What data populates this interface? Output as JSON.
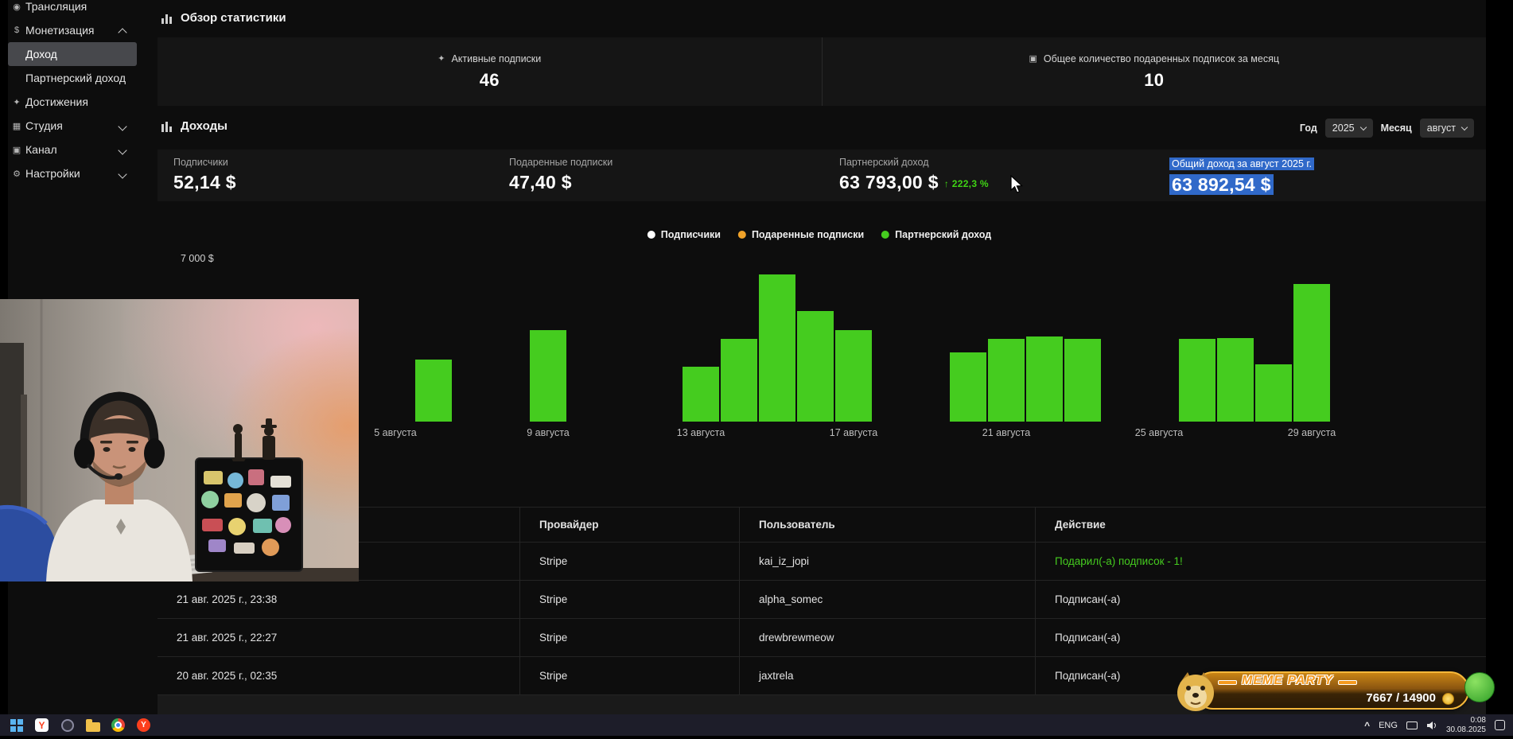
{
  "colors": {
    "bar_green": "#45cc1f",
    "legend_orange": "#f0a229",
    "legend_white": "#ffffff",
    "selection_blue": "#3069c9",
    "delta_green": "#3fd414"
  },
  "sidebar": {
    "items": [
      {
        "key": "broadcast",
        "label": "Трансляция",
        "level": 0,
        "chevron": null,
        "active": false,
        "icon": "broadcast-icon",
        "icon_glyph": "◉"
      },
      {
        "key": "monetization",
        "label": "Монетизация",
        "level": 0,
        "chevron": "up",
        "active": false,
        "icon": "monetization-icon",
        "icon_glyph": "$"
      },
      {
        "key": "income",
        "label": "Доход",
        "level": 1,
        "chevron": null,
        "active": true,
        "icon": null,
        "icon_glyph": null
      },
      {
        "key": "partner-income",
        "label": "Партнерский доход",
        "level": 1,
        "chevron": null,
        "active": false,
        "icon": null,
        "icon_glyph": null
      },
      {
        "key": "achievements",
        "label": "Достижения",
        "level": 0,
        "chevron": null,
        "active": false,
        "icon": "achievements-icon",
        "icon_glyph": "✦"
      },
      {
        "key": "studio",
        "label": "Студия",
        "level": 0,
        "chevron": "down",
        "active": false,
        "icon": "studio-icon",
        "icon_glyph": "▦"
      },
      {
        "key": "channel",
        "label": "Канал",
        "level": 0,
        "chevron": "down",
        "active": false,
        "icon": "channel-icon",
        "icon_glyph": "▣"
      },
      {
        "key": "settings",
        "label": "Настройки",
        "level": 0,
        "chevron": "down",
        "active": false,
        "icon": "settings-icon",
        "icon_glyph": "⚙"
      }
    ]
  },
  "overview": {
    "title": "Обзор статистики",
    "cards": [
      {
        "label": "Активные подписки",
        "value": "46",
        "icon": "subscriptions-icon",
        "icon_glyph": "✦"
      },
      {
        "label": "Общее количество подаренных подписок за месяц",
        "value": "10",
        "icon": "gift-subs-icon",
        "icon_glyph": "▣"
      }
    ]
  },
  "income": {
    "title": "Доходы",
    "year_label": "Год",
    "year_value": "2025",
    "month_label": "Месяц",
    "month_value": "август",
    "stats": [
      {
        "label": "Подписчики",
        "value": "52,14 $",
        "delta": null,
        "highlighted": false
      },
      {
        "label": "Подаренные подписки",
        "value": "47,40 $",
        "delta": null,
        "highlighted": false
      },
      {
        "label": "Партнерский доход",
        "value": "63 793,00 $",
        "delta": "222,3 %",
        "highlighted": false
      },
      {
        "label": "Общий доход за август 2025 г.",
        "value": "63 892,54 $",
        "delta": null,
        "highlighted": true
      }
    ]
  },
  "chart_data": {
    "type": "bar",
    "title": "",
    "unit": "$",
    "legend": [
      {
        "label": "Подписчики",
        "color": "#ffffff"
      },
      {
        "label": "Подаренные подписки",
        "color": "#f0a229"
      },
      {
        "label": "Партнерский доход",
        "color": "#45cc1f"
      }
    ],
    "y_tick": "7 000 $",
    "y_tick_value": 7000,
    "ylim": [
      0,
      7300
    ],
    "series": [
      {
        "name": "Партнерский доход",
        "color": "#45cc1f",
        "points": [
          {
            "day": 6,
            "value": 2700
          },
          {
            "day": 9,
            "value": 4000
          },
          {
            "day": 13,
            "value": 2400
          },
          {
            "day": 14,
            "value": 3600
          },
          {
            "day": 15,
            "value": 6400
          },
          {
            "day": 16,
            "value": 4800
          },
          {
            "day": 17,
            "value": 4000
          },
          {
            "day": 20,
            "value": 3000
          },
          {
            "day": 21,
            "value": 3600
          },
          {
            "day": 22,
            "value": 3700
          },
          {
            "day": 23,
            "value": 3600
          },
          {
            "day": 26,
            "value": 3600
          },
          {
            "day": 27,
            "value": 3650
          },
          {
            "day": 28,
            "value": 2500
          },
          {
            "day": 29,
            "value": 6000
          }
        ]
      }
    ],
    "x_ticks": [
      {
        "day": 5,
        "label": "5 августа"
      },
      {
        "day": 9,
        "label": "9 августа"
      },
      {
        "day": 13,
        "label": "13 августа"
      },
      {
        "day": 17,
        "label": "17 августа"
      },
      {
        "day": 21,
        "label": "21 августа"
      },
      {
        "day": 25,
        "label": "25 августа"
      },
      {
        "day": 29,
        "label": "29 августа"
      }
    ]
  },
  "table": {
    "headers": [
      "Провайдер",
      "Пользователь",
      "Действие"
    ],
    "rows": [
      {
        "date": "",
        "provider": "Stripe",
        "user": "kai_iz_jopi",
        "action": "Подарил(-а) подписок - 1!",
        "action_green": true
      },
      {
        "date": "21 авг. 2025 г., 23:38",
        "provider": "Stripe",
        "user": "alpha_somec",
        "action": "Подписан(-а)",
        "action_green": false
      },
      {
        "date": "21 авг. 2025 г., 22:27",
        "provider": "Stripe",
        "user": "drewbrewmeow",
        "action": "Подписан(-а)",
        "action_green": false
      },
      {
        "date": "20 авг. 2025 г., 02:35",
        "provider": "Stripe",
        "user": "jaxtrela",
        "action": "Подписан(-а)",
        "action_green": false
      }
    ]
  },
  "meme_widget": {
    "title": "MEME PARTY",
    "counter": "7667 / 14900"
  },
  "taskbar": {
    "lang": "ENG",
    "time": "0:08",
    "date": "30.08.2025",
    "tray_chevron": "^"
  }
}
